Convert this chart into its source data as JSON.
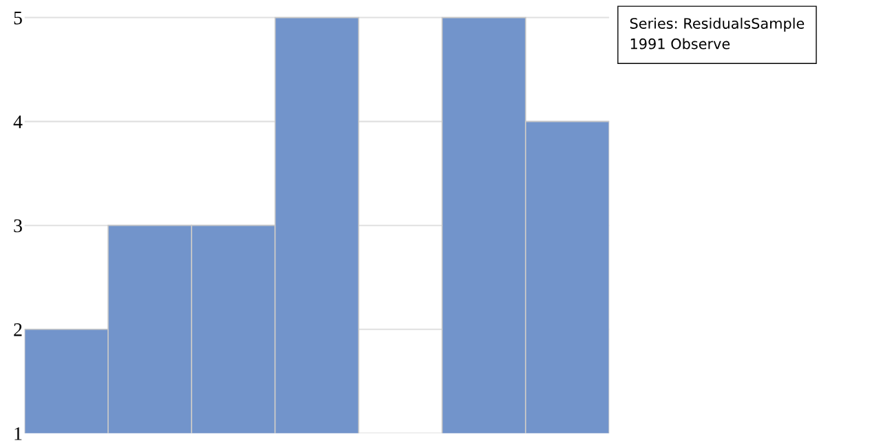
{
  "chart_data": {
    "type": "bar",
    "categories": [
      null,
      null,
      null,
      null,
      null,
      null,
      null
    ],
    "values": [
      2,
      3,
      3,
      5,
      null,
      5,
      4
    ],
    "color": "#7294cb",
    "ylim": [
      1,
      5.02
    ],
    "yticks": [
      1,
      2,
      3,
      4,
      5
    ],
    "grid": "y",
    "tick_labels": "y",
    "annotations": [
      "Series: ResidualsSample\n1991 Observe"
    ]
  }
}
